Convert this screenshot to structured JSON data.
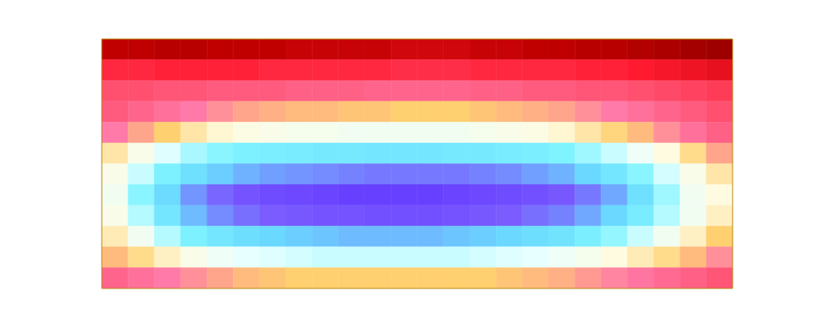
{
  "chart_data": {
    "type": "heatmap",
    "tick_labels": false,
    "zlim": [
      0,
      1
    ],
    "cells": [
      [
        0.92,
        0.92,
        0.93,
        0.93,
        0.92,
        0.92,
        0.92,
        0.91,
        0.91,
        0.91,
        0.91,
        0.9,
        0.9,
        0.9,
        0.91,
        0.91,
        0.92,
        0.92,
        0.93,
        0.93,
        0.94,
        0.95,
        0.96,
        0.97
      ],
      [
        0.82,
        0.82,
        0.83,
        0.83,
        0.83,
        0.83,
        0.82,
        0.82,
        0.82,
        0.82,
        0.82,
        0.81,
        0.81,
        0.81,
        0.82,
        0.82,
        0.82,
        0.82,
        0.83,
        0.83,
        0.84,
        0.85,
        0.86,
        0.87
      ],
      [
        0.76,
        0.76,
        0.75,
        0.75,
        0.74,
        0.74,
        0.74,
        0.73,
        0.73,
        0.73,
        0.72,
        0.72,
        0.72,
        0.72,
        0.73,
        0.73,
        0.74,
        0.74,
        0.75,
        0.75,
        0.76,
        0.77,
        0.78,
        0.79
      ],
      [
        0.74,
        0.72,
        0.7,
        0.68,
        0.66,
        0.64,
        0.63,
        0.62,
        0.62,
        0.61,
        0.61,
        0.6,
        0.6,
        0.6,
        0.61,
        0.62,
        0.63,
        0.64,
        0.66,
        0.68,
        0.7,
        0.72,
        0.74,
        0.76
      ],
      [
        0.68,
        0.64,
        0.6,
        0.56,
        0.53,
        0.51,
        0.5,
        0.49,
        0.49,
        0.48,
        0.48,
        0.48,
        0.48,
        0.48,
        0.49,
        0.5,
        0.51,
        0.53,
        0.56,
        0.59,
        0.62,
        0.66,
        0.7,
        0.73
      ],
      [
        0.56,
        0.5,
        0.44,
        0.39,
        0.36,
        0.34,
        0.33,
        0.32,
        0.31,
        0.31,
        0.3,
        0.3,
        0.3,
        0.31,
        0.31,
        0.32,
        0.33,
        0.35,
        0.38,
        0.42,
        0.47,
        0.52,
        0.58,
        0.64
      ],
      [
        0.5,
        0.42,
        0.34,
        0.28,
        0.24,
        0.21,
        0.19,
        0.18,
        0.17,
        0.16,
        0.15,
        0.15,
        0.15,
        0.15,
        0.16,
        0.17,
        0.19,
        0.21,
        0.25,
        0.3,
        0.36,
        0.43,
        0.5,
        0.56
      ],
      [
        0.48,
        0.36,
        0.26,
        0.18,
        0.13,
        0.1,
        0.08,
        0.07,
        0.06,
        0.05,
        0.05,
        0.05,
        0.05,
        0.06,
        0.07,
        0.08,
        0.09,
        0.11,
        0.15,
        0.2,
        0.28,
        0.38,
        0.48,
        0.52
      ],
      [
        0.5,
        0.4,
        0.3,
        0.22,
        0.17,
        0.14,
        0.12,
        0.11,
        0.1,
        0.1,
        0.09,
        0.09,
        0.09,
        0.1,
        0.11,
        0.12,
        0.14,
        0.16,
        0.2,
        0.25,
        0.32,
        0.4,
        0.48,
        0.54
      ],
      [
        0.55,
        0.48,
        0.4,
        0.34,
        0.3,
        0.27,
        0.25,
        0.24,
        0.23,
        0.22,
        0.22,
        0.22,
        0.22,
        0.23,
        0.24,
        0.25,
        0.27,
        0.29,
        0.33,
        0.37,
        0.42,
        0.48,
        0.54,
        0.6
      ],
      [
        0.62,
        0.58,
        0.54,
        0.5,
        0.47,
        0.45,
        0.44,
        0.43,
        0.42,
        0.42,
        0.42,
        0.42,
        0.42,
        0.42,
        0.43,
        0.44,
        0.45,
        0.47,
        0.49,
        0.52,
        0.55,
        0.58,
        0.62,
        0.66
      ],
      [
        0.72,
        0.7,
        0.68,
        0.66,
        0.64,
        0.62,
        0.61,
        0.6,
        0.6,
        0.6,
        0.6,
        0.6,
        0.6,
        0.6,
        0.6,
        0.61,
        0.62,
        0.63,
        0.65,
        0.67,
        0.69,
        0.71,
        0.73,
        0.75
      ]
    ]
  }
}
